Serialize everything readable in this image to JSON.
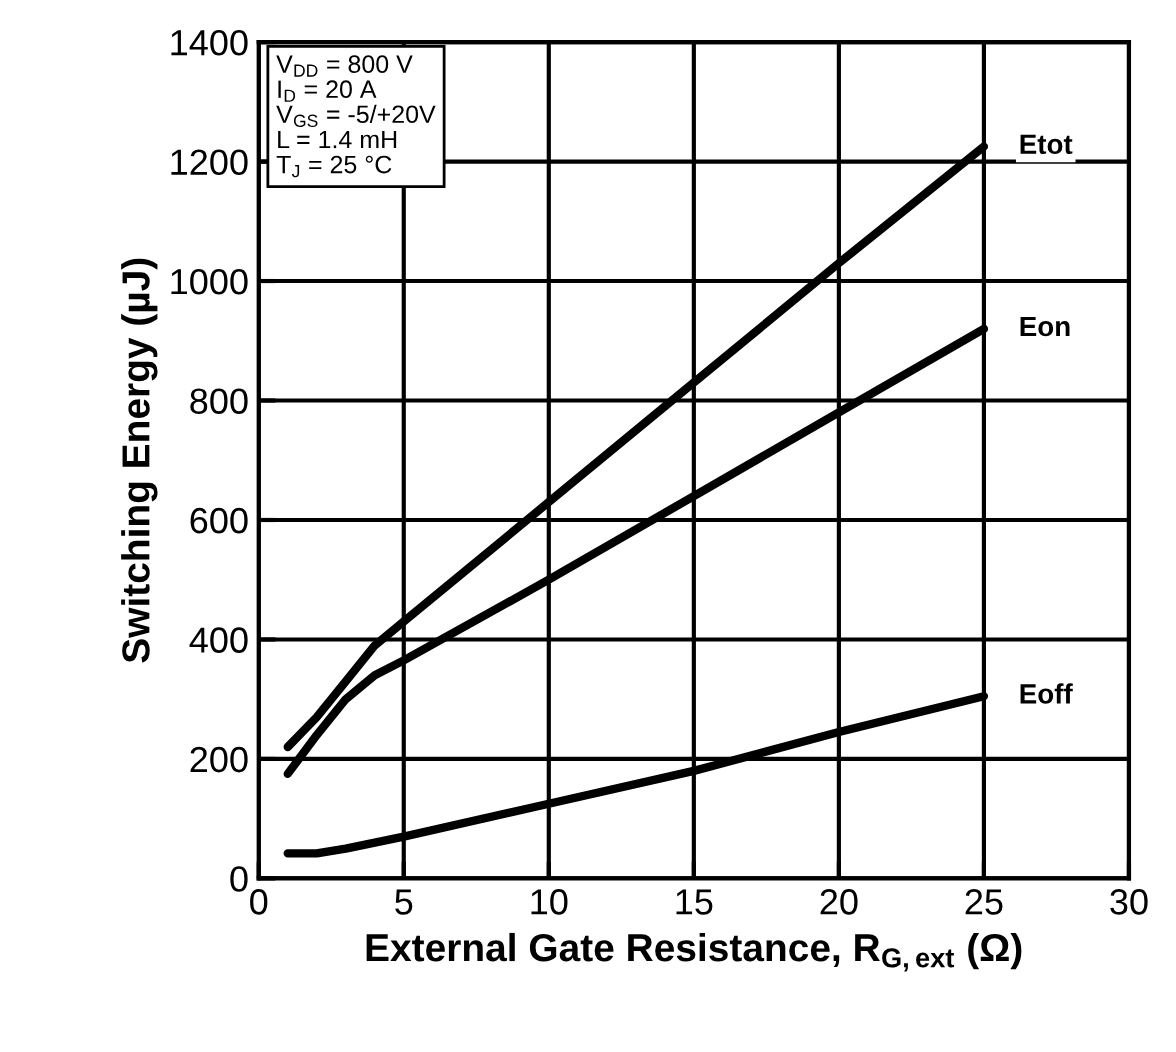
{
  "chart_data": {
    "type": "line",
    "xlabel": "External Gate Resistance, R$_{G,ext}$ (Ω)",
    "ylabel": "Switching Energy (µJ)",
    "xlim": [
      0,
      30
    ],
    "xticks": [
      0,
      5,
      10,
      15,
      20,
      25,
      30
    ],
    "ylim": [
      0,
      1400
    ],
    "yticks": [
      0,
      200,
      400,
      600,
      800,
      1000,
      1200,
      1400
    ],
    "grid": true,
    "legend": false,
    "marker": "none",
    "line_style": "solid",
    "annotations": [
      "V$_{DD}$ = 800 V\nI$_{D}$ = 20 A\nV$_{GS}$ = -5/+20V\nL = 1.4 mH\nT$_{J}$ = 25 °C"
    ],
    "series": [
      {
        "name": "Etot",
        "color": "#000000",
        "x": [
          1,
          2,
          3,
          4,
          5,
          10,
          15,
          20,
          25
        ],
        "values": [
          220,
          270,
          330,
          390,
          430,
          630,
          830,
          1030,
          1225
        ]
      },
      {
        "name": "Eon",
        "color": "#000000",
        "x": [
          1,
          2,
          3,
          4,
          5,
          10,
          15,
          20,
          25
        ],
        "values": [
          175,
          240,
          300,
          340,
          365,
          500,
          640,
          780,
          920
        ]
      },
      {
        "name": "Eoff",
        "color": "#000000",
        "x": [
          1,
          2,
          3,
          5,
          10,
          15,
          20,
          25
        ],
        "values": [
          42,
          42,
          50,
          70,
          125,
          180,
          245,
          305
        ]
      }
    ]
  }
}
